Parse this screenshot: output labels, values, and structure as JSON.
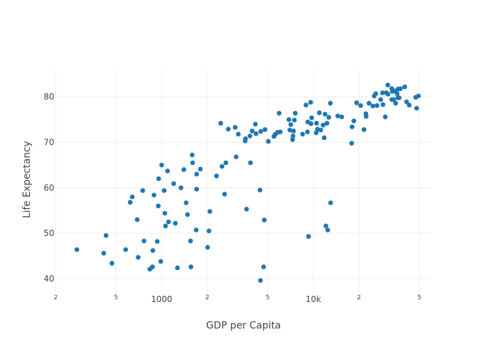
{
  "chart_data": {
    "type": "scatter",
    "title": "",
    "xlabel": "GDP per Capita",
    "ylabel": "Life Expectancy",
    "xscale": "log",
    "xlim": [
      200,
      60000
    ],
    "ylim": [
      37,
      86
    ],
    "grid": true,
    "legend": "none",
    "x_ticks": [
      {
        "value": 200,
        "label": "2"
      },
      {
        "value": 500,
        "label": "5"
      },
      {
        "value": 1000,
        "label": "1000"
      },
      {
        "value": 2000,
        "label": "2"
      },
      {
        "value": 5000,
        "label": "5"
      },
      {
        "value": 10000,
        "label": "10k"
      },
      {
        "value": 20000,
        "label": "2"
      },
      {
        "value": 50000,
        "label": "5"
      }
    ],
    "y_ticks": [
      40,
      50,
      60,
      70,
      80
    ],
    "color": "#1f77b4",
    "points": [
      [
        276,
        46.4
      ],
      [
        415,
        45.6
      ],
      [
        430,
        49.5
      ],
      [
        470,
        43.4
      ],
      [
        579,
        46.4
      ],
      [
        620,
        56.8
      ],
      [
        640,
        58.0
      ],
      [
        690,
        53.0
      ],
      [
        700,
        44.7
      ],
      [
        750,
        59.4
      ],
      [
        765,
        48.3
      ],
      [
        836,
        42.1
      ],
      [
        870,
        42.6
      ],
      [
        875,
        46.2
      ],
      [
        890,
        58.4
      ],
      [
        935,
        48.2
      ],
      [
        950,
        56.0
      ],
      [
        955,
        62.0
      ],
      [
        986,
        43.8
      ],
      [
        1000,
        65.0
      ],
      [
        1040,
        59.4
      ],
      [
        1050,
        54.4
      ],
      [
        1060,
        51.6
      ],
      [
        1093,
        63.7
      ],
      [
        1110,
        52.5
      ],
      [
        1200,
        60.9
      ],
      [
        1230,
        52.2
      ],
      [
        1270,
        42.4
      ],
      [
        1340,
        60.0
      ],
      [
        1400,
        64.0
      ],
      [
        1450,
        56.7
      ],
      [
        1480,
        54.1
      ],
      [
        1550,
        48.3
      ],
      [
        1560,
        42.6
      ],
      [
        1590,
        67.2
      ],
      [
        1600,
        65.5
      ],
      [
        1690,
        50.7
      ],
      [
        1700,
        59.7
      ],
      [
        1700,
        63.0
      ],
      [
        1800,
        64.1
      ],
      [
        2010,
        46.9
      ],
      [
        2050,
        50.5
      ],
      [
        2080,
        54.8
      ],
      [
        2300,
        62.6
      ],
      [
        2450,
        74.2
      ],
      [
        2500,
        64.7
      ],
      [
        2600,
        58.6
      ],
      [
        2650,
        65.5
      ],
      [
        2750,
        72.9
      ],
      [
        3050,
        73.3
      ],
      [
        3100,
        66.8
      ],
      [
        3200,
        71.8
      ],
      [
        3550,
        70.3
      ],
      [
        3570,
        70.8
      ],
      [
        3630,
        55.3
      ],
      [
        3820,
        71.4
      ],
      [
        3850,
        65.5
      ],
      [
        3950,
        72.5
      ],
      [
        4150,
        74.0
      ],
      [
        4190,
        71.9
      ],
      [
        4450,
        59.5
      ],
      [
        4480,
        39.6
      ],
      [
        4500,
        72.4
      ],
      [
        4700,
        42.6
      ],
      [
        4750,
        52.9
      ],
      [
        4800,
        72.8
      ],
      [
        5050,
        70.2
      ],
      [
        5500,
        71.3
      ],
      [
        5600,
        71.7
      ],
      [
        5800,
        72.2
      ],
      [
        5950,
        76.4
      ],
      [
        6050,
        72.3
      ],
      [
        6900,
        75.0
      ],
      [
        7000,
        72.7
      ],
      [
        7100,
        73.9
      ],
      [
        7300,
        70.6
      ],
      [
        7350,
        71.4
      ],
      [
        7400,
        72.5
      ],
      [
        7500,
        74.9
      ],
      [
        7600,
        76.4
      ],
      [
        8500,
        71.8
      ],
      [
        8950,
        78.2
      ],
      [
        9150,
        72.3
      ],
      [
        9200,
        74.5
      ],
      [
        9300,
        49.3
      ],
      [
        9600,
        78.8
      ],
      [
        9650,
        74.1
      ],
      [
        9750,
        75.4
      ],
      [
        10450,
        72.1
      ],
      [
        10500,
        74.2
      ],
      [
        10650,
        72.9
      ],
      [
        10950,
        76.5
      ],
      [
        11200,
        72.7
      ],
      [
        11600,
        73.8
      ],
      [
        11800,
        71.0
      ],
      [
        11950,
        76.2
      ],
      [
        12100,
        51.6
      ],
      [
        12300,
        74.2
      ],
      [
        12450,
        50.7
      ],
      [
        12650,
        75.5
      ],
      [
        12950,
        78.6
      ],
      [
        13000,
        56.7
      ],
      [
        14500,
        75.8
      ],
      [
        15400,
        75.6
      ],
      [
        17900,
        69.8
      ],
      [
        18000,
        73.4
      ],
      [
        18500,
        74.7
      ],
      [
        19300,
        78.7
      ],
      [
        20500,
        78.1
      ],
      [
        21600,
        72.8
      ],
      [
        22200,
        76.3
      ],
      [
        22300,
        75.7
      ],
      [
        23300,
        78.6
      ],
      [
        24700,
        78.0
      ],
      [
        25200,
        80.2
      ],
      [
        25800,
        80.7
      ],
      [
        26300,
        78.1
      ],
      [
        27800,
        79.4
      ],
      [
        28600,
        80.9
      ],
      [
        28800,
        78.3
      ],
      [
        29800,
        75.6
      ],
      [
        30300,
        80.9
      ],
      [
        31100,
        80.6
      ],
      [
        32900,
        79.4
      ],
      [
        32900,
        81.8
      ],
      [
        33200,
        81.2
      ],
      [
        33800,
        79.4
      ],
      [
        34600,
        81.3
      ],
      [
        34900,
        78.6
      ],
      [
        35700,
        80.7
      ],
      [
        36100,
        79.8
      ],
      [
        36200,
        81.7
      ],
      [
        36800,
        79.8
      ],
      [
        37500,
        81.8
      ],
      [
        40100,
        82.2
      ],
      [
        41200,
        78.9
      ],
      [
        42900,
        78.2
      ],
      [
        47300,
        79.9
      ],
      [
        48000,
        77.5
      ],
      [
        49300,
        80.2
      ],
      [
        31000,
        82.6
      ]
    ]
  }
}
